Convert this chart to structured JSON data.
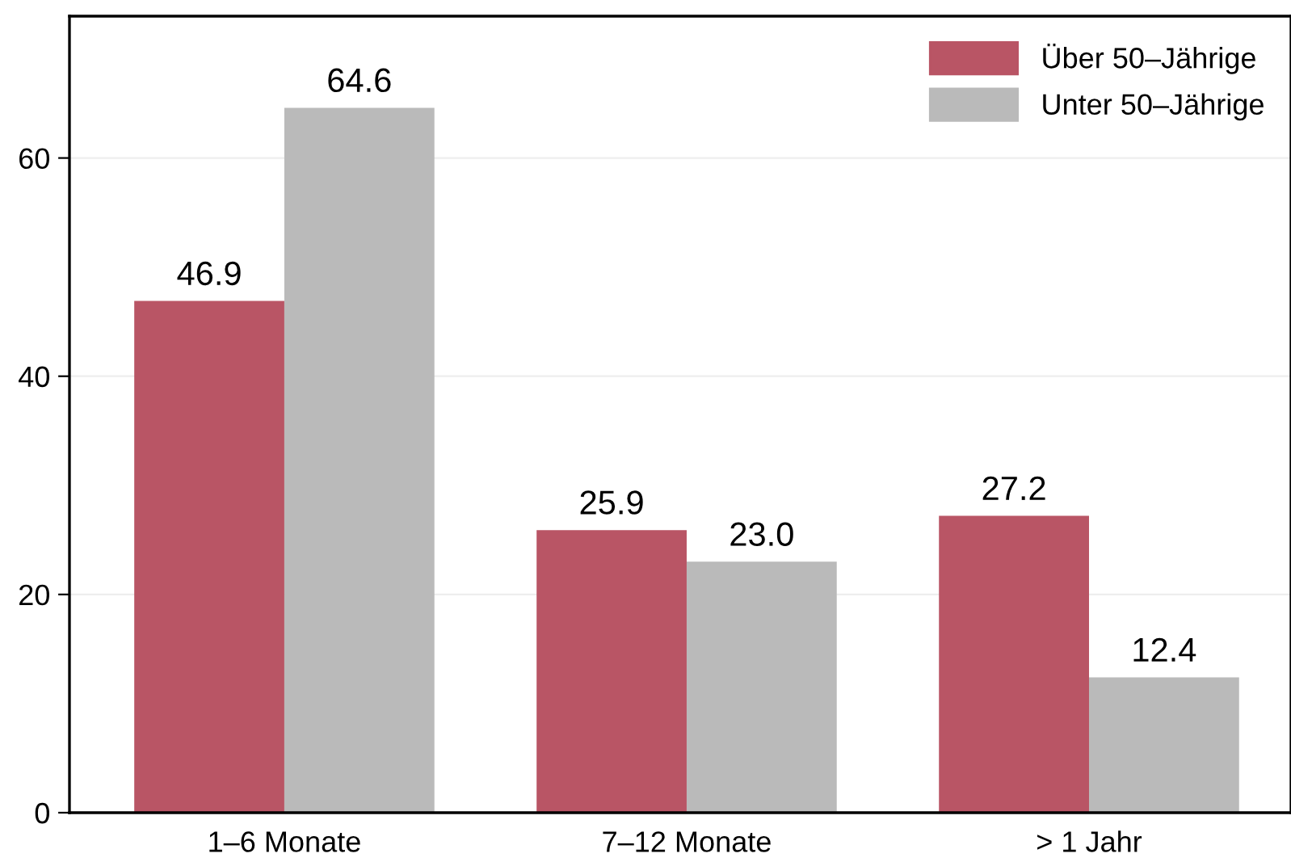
{
  "chart_data": {
    "type": "bar",
    "categories": [
      "1–6 Monate",
      "7–12 Monate",
      "> 1 Jahr"
    ],
    "series": [
      {
        "name": "Über 50–Jährige",
        "color": "#b95565",
        "values": [
          46.9,
          25.9,
          27.2
        ],
        "value_labels": [
          "46.9",
          "25.9",
          "27.2"
        ]
      },
      {
        "name": "Unter 50–Jährige",
        "color": "#bababa",
        "values": [
          64.6,
          23.0,
          12.4
        ],
        "value_labels": [
          "64.6",
          "23.0",
          "12.4"
        ]
      }
    ],
    "ylim": [
      0,
      73
    ],
    "yticks": [
      0,
      20,
      40,
      60
    ],
    "grid": "y",
    "legend": "top right"
  }
}
